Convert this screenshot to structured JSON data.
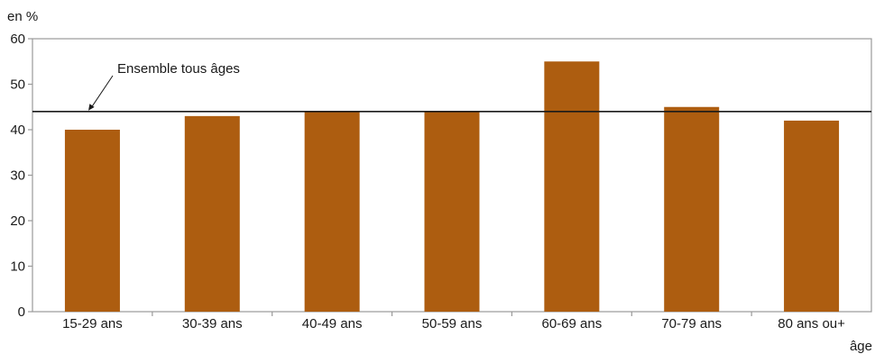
{
  "chart_data": {
    "type": "bar",
    "categories": [
      "15-29 ans",
      "30-39 ans",
      "40-49 ans",
      "50-59 ans",
      "60-69 ans",
      "70-79 ans",
      "80 ans ou+"
    ],
    "values": [
      40,
      43,
      44,
      44,
      55,
      45,
      42
    ],
    "ylabel": "en %",
    "xlabel": "âge",
    "ylim": [
      0,
      60
    ],
    "yticks": [
      0,
      10,
      20,
      30,
      40,
      50,
      60
    ],
    "grid": false,
    "reference_line": {
      "label": "Ensemble tous âges",
      "value": 44
    },
    "colors": {
      "bar": "#AD5D10",
      "axis": "#999999",
      "reference": "#1a1a1a"
    }
  }
}
